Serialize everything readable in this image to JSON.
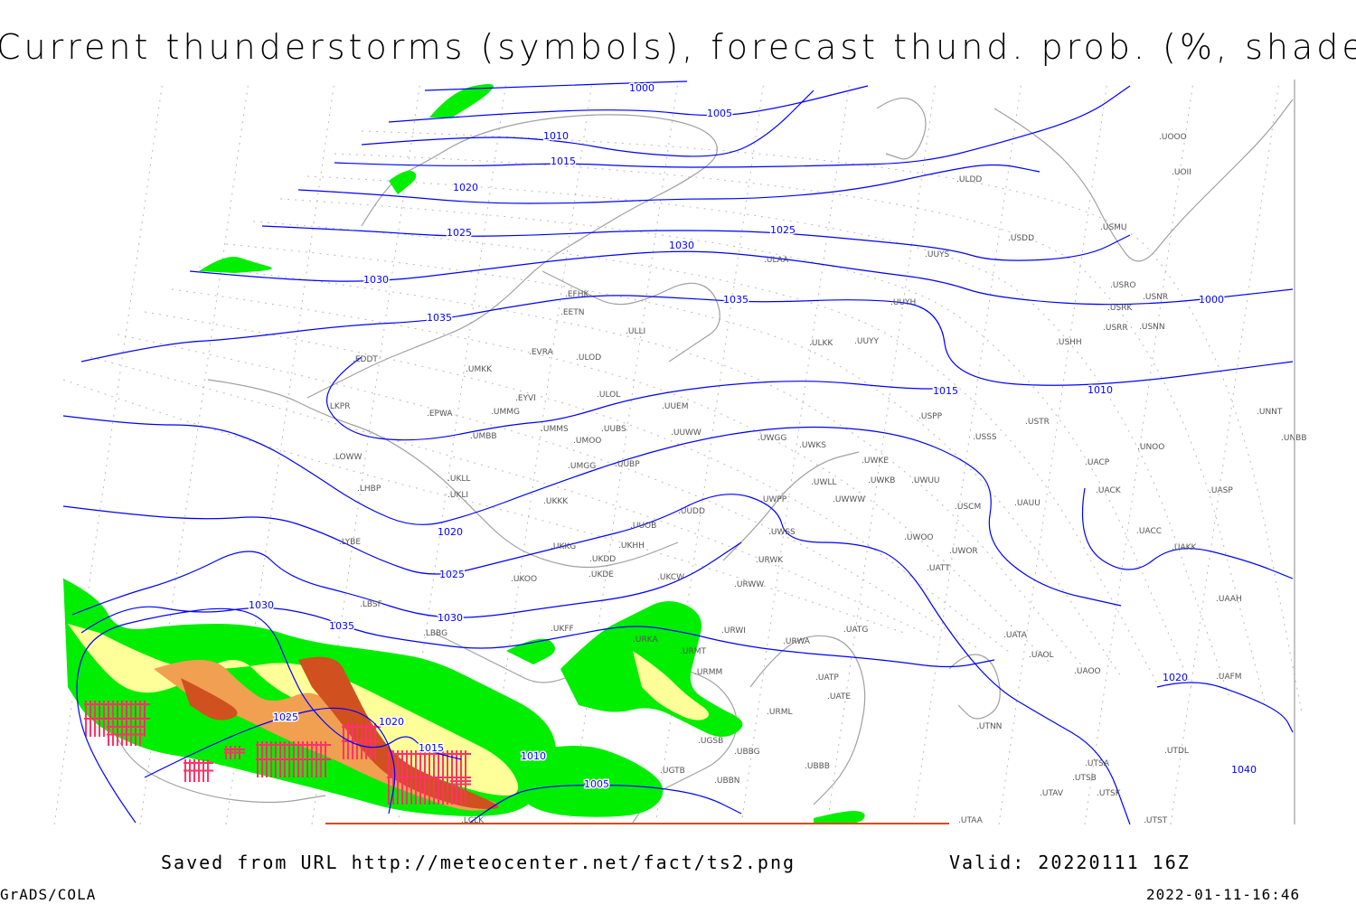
{
  "title": "Current thunderstorms (symbols), forecast thund. prob. (%, shaded)",
  "footer": {
    "source": "Saved from URL http://meteocenter.net/fact/ts2.png",
    "valid": "Valid: 20220111 16Z",
    "software": "GrADS/COLA",
    "timestamp": "2022-01-11-16:46"
  },
  "colors": {
    "isobar": "#0000ff",
    "coast": "#a0a0a0",
    "prob_low": "#00ee00",
    "prob_mid": "#ffff99",
    "prob_high": "#f0a050",
    "prob_max": "#d05020",
    "thunderstorm_symbol": "#ff3366"
  },
  "isobar_labels": [
    "1000",
    "1005",
    "1010",
    "1015",
    "1020",
    "1025",
    "1030",
    "1035",
    "1020",
    "1025",
    "1030",
    "1035",
    "1030",
    "1025",
    "1020",
    "1015",
    "1010",
    "1005",
    "1000",
    "1010",
    "1015",
    "1020",
    "1025",
    "1030",
    "1035",
    "1040"
  ],
  "stations": [
    "EDDT",
    "EPWA",
    "UMKK",
    "EVRA",
    "ULOD",
    "EFHK",
    "EETN",
    "ULLI",
    "EYVI",
    "UMMG",
    "ULOL",
    "UUEM",
    "UMBB",
    "UMMS",
    "UMOO",
    "UUBS",
    "UUWW",
    "LKPR",
    "LOWW",
    "LHBP",
    "UKLL",
    "UKLI",
    "UKKK",
    "UMGG",
    "UUBP",
    "UUOB",
    "UUDD",
    "LYBE",
    "UKHH",
    "UKKG",
    "UKDD",
    "UKDE",
    "UKOO",
    "UKFF",
    "UKCW",
    "LBSF",
    "LBBG",
    "URKA",
    "URMT",
    "URMM",
    "URWW",
    "URWI",
    "URWA",
    "UATG",
    "URML",
    "UATE",
    "UATT",
    "UATA",
    "UAOL",
    "UAOO",
    "UTNN",
    "UTSA",
    "UTSB",
    "UTAV",
    "UTSK",
    "UTAA",
    "UGTB",
    "UBBB",
    "UBBN",
    "UGSB",
    "LCLK",
    "UWGG",
    "UWKS",
    "UWKE",
    "UWKB",
    "UWUU",
    "UWLL",
    "UWWW",
    "UWPP",
    "UWSS",
    "URWK",
    "UWOO",
    "UWOR",
    "USCM",
    "UAUU",
    "USSS",
    "USTR",
    "USPP",
    "UACP",
    "UACK",
    "UASP",
    "UACC",
    "UAKK",
    "UAAH",
    "UNOO",
    "UNNT",
    "UNBB",
    "USDD",
    "USMU",
    "USRO",
    "USRK",
    "USNR",
    "USRR",
    "USNN",
    "USHH",
    "UUYY",
    "ULKK",
    "UUYH",
    "ULAA",
    "UUYS",
    "ULDD",
    "UOOO",
    "UOII",
    "UTST",
    "UTDL",
    "UAFM",
    "UATP",
    "UBBG"
  ]
}
